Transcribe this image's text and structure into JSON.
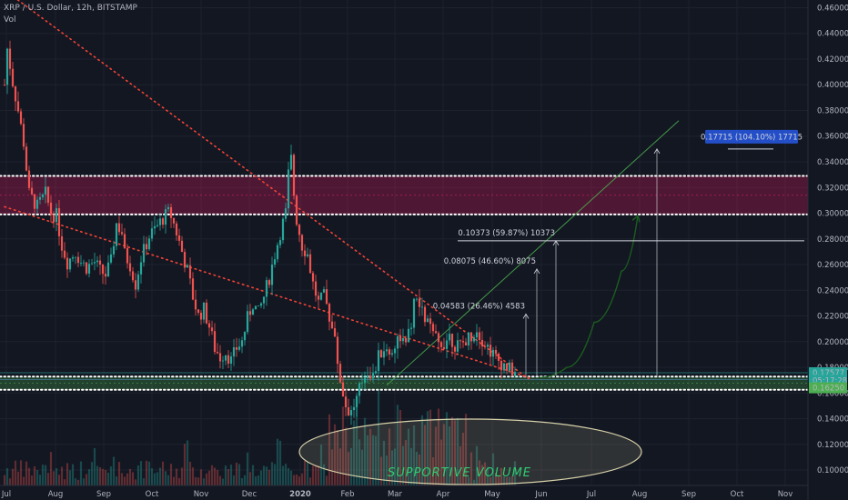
{
  "header": {
    "symbol": "XRP / U.S. Dollar, 12h, BITSTAMP",
    "indicator": "Vol"
  },
  "chart_data": {
    "type": "candlestick",
    "title": "XRP / U.S. Dollar, 12h, BITSTAMP",
    "x_ticks": [
      "Jul",
      "Aug",
      "Sep",
      "Oct",
      "Nov",
      "Dec",
      "2020",
      "Feb",
      "Mar",
      "Apr",
      "May",
      "Jun",
      "Jul",
      "Aug",
      "Sep",
      "Oct",
      "Nov"
    ],
    "y_ticks": [
      "0.46000",
      "0.44000",
      "0.42000",
      "0.40000",
      "0.38000",
      "0.36000",
      "0.34000",
      "0.32000",
      "0.30000",
      "0.28000",
      "0.26000",
      "0.24000",
      "0.22000",
      "0.20000",
      "0.18000",
      "0.16000",
      "0.14000",
      "0.12000",
      "0.10000"
    ],
    "ylim": [
      0.088,
      0.466
    ],
    "price_path": [
      [
        0,
        0.4
      ],
      [
        1,
        0.428
      ],
      [
        3,
        0.402
      ],
      [
        5,
        0.38
      ],
      [
        7,
        0.355
      ],
      [
        9,
        0.315
      ],
      [
        12,
        0.305
      ],
      [
        15,
        0.315
      ],
      [
        17,
        0.3
      ],
      [
        19,
        0.298
      ],
      [
        21,
        0.275
      ],
      [
        23,
        0.262
      ],
      [
        26,
        0.27
      ],
      [
        28,
        0.262
      ],
      [
        30,
        0.258
      ],
      [
        33,
        0.262
      ],
      [
        35,
        0.255
      ],
      [
        37,
        0.252
      ],
      [
        39,
        0.262
      ],
      [
        40,
        0.278
      ],
      [
        41,
        0.292
      ],
      [
        43,
        0.285
      ],
      [
        44,
        0.268
      ],
      [
        46,
        0.26
      ],
      [
        48,
        0.245
      ],
      [
        50,
        0.265
      ],
      [
        53,
        0.282
      ],
      [
        56,
        0.29
      ],
      [
        58,
        0.296
      ],
      [
        60,
        0.3
      ],
      [
        61,
        0.298
      ],
      [
        63,
        0.285
      ],
      [
        65,
        0.27
      ],
      [
        67,
        0.255
      ],
      [
        69,
        0.235
      ],
      [
        71,
        0.22
      ],
      [
        73,
        0.225
      ],
      [
        75,
        0.212
      ],
      [
        77,
        0.195
      ],
      [
        79,
        0.188
      ],
      [
        81,
        0.192
      ],
      [
        83,
        0.185
      ],
      [
        85,
        0.195
      ],
      [
        87,
        0.2
      ],
      [
        89,
        0.218
      ],
      [
        91,
        0.23
      ],
      [
        93,
        0.222
      ],
      [
        95,
        0.235
      ],
      [
        97,
        0.25
      ],
      [
        99,
        0.268
      ],
      [
        101,
        0.285
      ],
      [
        103,
        0.3
      ],
      [
        104,
        0.33
      ],
      [
        105,
        0.342
      ],
      [
        106,
        0.315
      ],
      [
        107,
        0.295
      ],
      [
        109,
        0.275
      ],
      [
        111,
        0.268
      ],
      [
        113,
        0.245
      ],
      [
        115,
        0.23
      ],
      [
        117,
        0.235
      ],
      [
        119,
        0.22
      ],
      [
        121,
        0.2
      ],
      [
        123,
        0.17
      ],
      [
        125,
        0.15
      ],
      [
        127,
        0.145
      ],
      [
        129,
        0.155
      ],
      [
        131,
        0.17
      ],
      [
        133,
        0.178
      ],
      [
        135,
        0.172
      ],
      [
        137,
        0.188
      ],
      [
        139,
        0.195
      ],
      [
        141,
        0.19
      ],
      [
        143,
        0.198
      ],
      [
        145,
        0.205
      ],
      [
        147,
        0.195
      ],
      [
        149,
        0.215
      ],
      [
        150,
        0.228
      ],
      [
        151,
        0.232
      ],
      [
        153,
        0.222
      ],
      [
        155,
        0.215
      ],
      [
        157,
        0.205
      ],
      [
        159,
        0.198
      ],
      [
        161,
        0.2
      ],
      [
        163,
        0.205
      ],
      [
        165,
        0.198
      ],
      [
        167,
        0.195
      ],
      [
        169,
        0.202
      ],
      [
        171,
        0.205
      ],
      [
        173,
        0.21
      ],
      [
        175,
        0.202
      ],
      [
        177,
        0.196
      ],
      [
        179,
        0.19
      ],
      [
        181,
        0.185
      ],
      [
        183,
        0.182
      ],
      [
        185,
        0.178
      ],
      [
        187,
        0.176
      ]
    ],
    "price_path_x": "candle_index_0_to_187_with_month_ticks_at_22_per_month",
    "zones": [
      {
        "name": "resistance",
        "top": 0.329,
        "bottom": 0.299,
        "color": "#e91e63"
      },
      {
        "name": "support",
        "top": 0.1728,
        "bottom": 0.1625,
        "color": "#4caf50"
      }
    ],
    "trendlines": [
      {
        "name": "long-downtrend",
        "from": [
          -4,
          0.48
        ],
        "to": [
          192,
          0.171
        ],
        "color": "#f44336",
        "style": "dotted"
      },
      {
        "name": "lower-downtrend",
        "from": [
          0,
          0.305
        ],
        "to": [
          192,
          0.172
        ],
        "color": "#f44336",
        "style": "dotted"
      },
      {
        "name": "rising-channel",
        "from": [
          140,
          0.166
        ],
        "to": [
          247,
          0.372
        ],
        "color": "#4caf50",
        "style": "solid-thin"
      }
    ],
    "projection": {
      "color": "#1b5e20",
      "path": [
        [
          196,
          0.172
        ],
        [
          206,
          0.18
        ],
        [
          216,
          0.215
        ],
        [
          226,
          0.255
        ],
        [
          232,
          0.298
        ]
      ]
    },
    "targets": [
      {
        "label": "0.04583 (26.46%) 4583",
        "value": 0.2215,
        "x_index": 191
      },
      {
        "label": "0.08075 (46.60%) 8075",
        "value": 0.2565,
        "x_index": 195
      },
      {
        "label": "0.10373 (59.87%) 10373",
        "value": 0.2785,
        "x_index": 202
      },
      {
        "label": "0.17715 (104.10%) 17715",
        "value": 0.35,
        "x_index": 239
      }
    ],
    "price_labels": [
      {
        "value": "0.17577",
        "price": 0.1758,
        "color": "#26a69a"
      },
      {
        "value": "05:17:28",
        "price": 0.1699,
        "color": "#26a69a"
      },
      {
        "value": "0.16250",
        "price": 0.164,
        "color": "#4caf50"
      }
    ],
    "annotations": [
      {
        "text": "SUPPORTIVE VOLUME",
        "kind": "ellipse-label"
      }
    ]
  }
}
